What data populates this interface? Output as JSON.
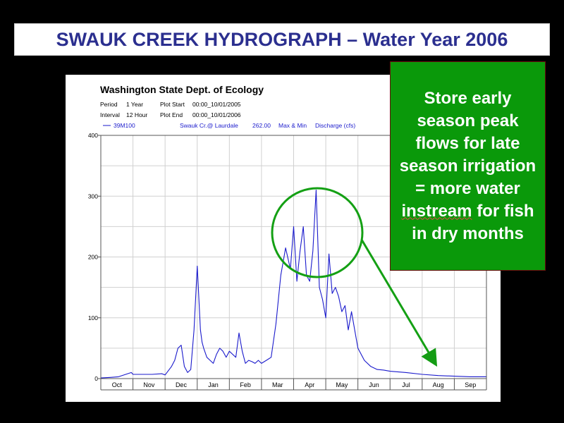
{
  "slide": {
    "title": "SWAUK CREEK HYDROGRAPH – Water Year 2006"
  },
  "callout": {
    "line1": "Store early season peak flows for late season irrigation = more water",
    "underlined": "instream",
    "line2": "for fish in dry months"
  },
  "chart_data": {
    "type": "line",
    "title": "Washington State Dept. of Ecology",
    "header": {
      "period_label": "Period",
      "period_value": "1 Year",
      "plot_start_label": "Plot Start",
      "plot_start_value": "00:00_10/01/2005",
      "interval_label": "Interval",
      "interval_value": "12 Hour",
      "plot_end_label": "Plot End",
      "plot_end_value": "00:00_10/01/2006"
    },
    "legend": {
      "station_id": "39M100",
      "station_name": "Swauk Cr.@ Laurdale",
      "value": "262.00",
      "stat": "Max & Min",
      "parameter": "Discharge (cfs)"
    },
    "ylim": [
      0,
      400
    ],
    "y_ticks": [
      0,
      100,
      200,
      300,
      400
    ],
    "categories": [
      "Oct",
      "Nov",
      "Dec",
      "Jan",
      "Feb",
      "Mar",
      "Apr",
      "May",
      "Jun",
      "Jul",
      "Aug",
      "Sep"
    ],
    "grid": true,
    "series": [
      {
        "name": "39M100",
        "color": "#1a1acc",
        "x": [
          0.0,
          0.3,
          0.55,
          0.95,
          1.0,
          1.3,
          1.6,
          1.9,
          2.0,
          2.2,
          2.3,
          2.4,
          2.5,
          2.6,
          2.7,
          2.8,
          2.9,
          3.0,
          3.1,
          3.15,
          3.2,
          3.3,
          3.4,
          3.5,
          3.6,
          3.7,
          3.8,
          3.9,
          4.0,
          4.1,
          4.2,
          4.3,
          4.4,
          4.5,
          4.6,
          4.7,
          4.8,
          4.9,
          5.0,
          5.15,
          5.3,
          5.45,
          5.6,
          5.75,
          5.9,
          6.0,
          6.1,
          6.2,
          6.3,
          6.4,
          6.5,
          6.6,
          6.7,
          6.8,
          6.9,
          7.0,
          7.1,
          7.2,
          7.3,
          7.4,
          7.5,
          7.6,
          7.7,
          7.8,
          7.9,
          8.0,
          8.2,
          8.4,
          8.6,
          8.8,
          9.0,
          9.5,
          10.0,
          10.5,
          11.0,
          11.5,
          12.0
        ],
        "values": [
          1,
          2,
          3,
          10,
          7,
          7,
          7,
          8,
          6,
          20,
          30,
          50,
          55,
          20,
          10,
          15,
          80,
          185,
          80,
          60,
          50,
          35,
          30,
          25,
          40,
          50,
          45,
          35,
          45,
          40,
          35,
          75,
          45,
          25,
          30,
          28,
          25,
          30,
          25,
          30,
          35,
          90,
          170,
          215,
          180,
          250,
          160,
          210,
          250,
          170,
          160,
          210,
          310,
          150,
          130,
          100,
          205,
          140,
          150,
          135,
          110,
          120,
          80,
          110,
          80,
          50,
          30,
          20,
          15,
          14,
          12,
          10,
          7,
          5,
          4,
          3,
          3
        ]
      }
    ]
  }
}
